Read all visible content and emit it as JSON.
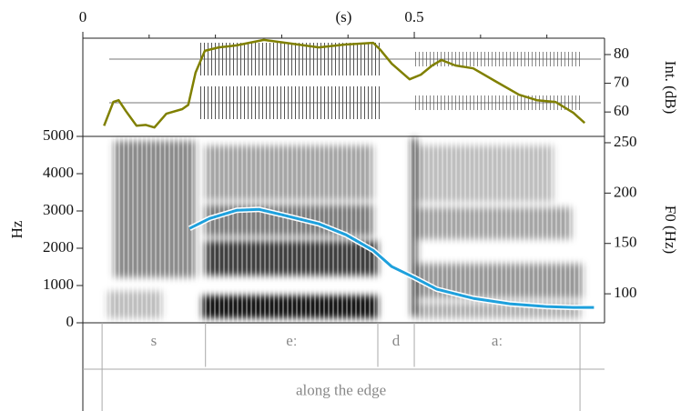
{
  "chart_data": [
    {
      "type": "line",
      "x_label": "(s)",
      "y2_label": "Int. (dB)",
      "xlim": [
        0,
        0.787
      ],
      "xticks": [
        0,
        0.5
      ],
      "xminorticks": [
        0.1,
        0.2,
        0.3,
        0.4,
        0.6,
        0.7
      ],
      "y2lim": [
        51.5,
        85.7
      ],
      "y2ticks": [
        60,
        70,
        80
      ],
      "series": [
        {
          "color": "#808000",
          "axis": "y2",
          "x": [
            0.032,
            0.046,
            0.054,
            0.065,
            0.081,
            0.095,
            0.108,
            0.126,
            0.15,
            0.159,
            0.17,
            0.184,
            0.205,
            0.232,
            0.273,
            0.315,
            0.356,
            0.397,
            0.438,
            0.449,
            0.466,
            0.493,
            0.51,
            0.527,
            0.541,
            0.562,
            0.589,
            0.624,
            0.658,
            0.685,
            0.713,
            0.74,
            0.757
          ],
          "values": [
            55.2,
            63.5,
            64.1,
            60.3,
            55.2,
            55.5,
            54.6,
            59.4,
            61.0,
            62.5,
            73.7,
            81.3,
            82.5,
            83.2,
            85.1,
            83.8,
            82.5,
            83.5,
            84.1,
            81.6,
            76.8,
            71.4,
            73.0,
            76.2,
            78.1,
            76.2,
            75.2,
            70.5,
            66.0,
            64.1,
            63.5,
            59.7,
            56.2
          ]
        }
      ]
    },
    {
      "type": "line",
      "y_label": "Hz",
      "y2_label": "F0 (Hz)",
      "xlim": [
        0,
        0.787
      ],
      "ylim": [
        0,
        5000
      ],
      "yticks": [
        0,
        1000,
        2000,
        3000,
        4000,
        5000
      ],
      "y2lim": [
        71.2,
        256.3
      ],
      "y2ticks": [
        100,
        150,
        200,
        250
      ],
      "series": [
        {
          "color": "#1ea0dc",
          "axis": "y2",
          "x": [
            0.161,
            0.191,
            0.232,
            0.266,
            0.301,
            0.356,
            0.397,
            0.438,
            0.466,
            0.5,
            0.534,
            0.589,
            0.644,
            0.699,
            0.74,
            0.771
          ],
          "values": [
            164.9,
            174.8,
            182.9,
            183.8,
            178.4,
            169.4,
            158.6,
            143.2,
            127.0,
            116.2,
            104.5,
            95.5,
            90.1,
            87.4,
            86.5,
            86.5
          ]
        }
      ]
    },
    {
      "type": "textgrid",
      "xlim": [
        0,
        0.787
      ],
      "tiers": [
        {
          "boundaries": [
            0.029,
            0.185,
            0.445,
            0.5,
            0.75
          ],
          "labels": [
            "s",
            "eː",
            "d",
            "aː"
          ]
        },
        {
          "boundaries": [
            0.029,
            0.75
          ],
          "labels": [
            "along the edge"
          ]
        }
      ]
    }
  ]
}
